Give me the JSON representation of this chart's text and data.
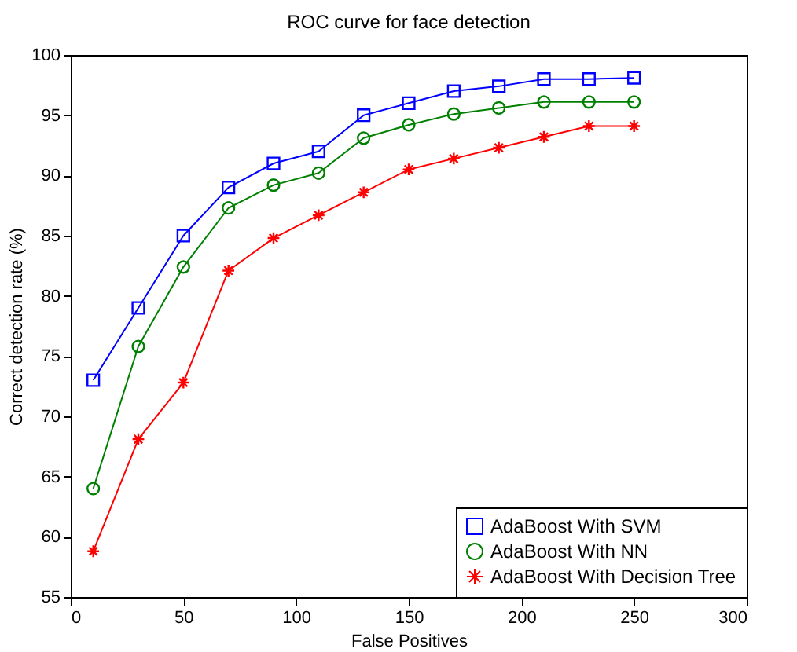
{
  "chart_data": {
    "type": "line",
    "title": "ROC curve for face detection",
    "xlabel": "False Positives",
    "ylabel": "Correct detection rate (%)",
    "x": [
      10,
      30,
      50,
      70,
      90,
      110,
      130,
      150,
      170,
      190,
      210,
      230,
      250
    ],
    "series": [
      {
        "name": "AdaBoost With SVM",
        "color": "#0000ff",
        "marker": "square",
        "values": [
          73,
          79,
          85,
          89,
          91,
          92,
          95,
          96,
          97,
          97.4,
          98,
          98,
          98.1
        ]
      },
      {
        "name": "AdaBoost With NN",
        "color": "#008000",
        "marker": "circle",
        "values": [
          64,
          75.8,
          82.4,
          87.3,
          89.2,
          90.2,
          93.1,
          94.2,
          95.1,
          95.6,
          96.1,
          96.1,
          96.1
        ]
      },
      {
        "name": "AdaBoost With Decision Tree",
        "color": "#ff0000",
        "marker": "cross",
        "values": [
          58.8,
          68.1,
          72.8,
          82.1,
          84.8,
          86.7,
          88.6,
          90.5,
          91.4,
          92.3,
          93.2,
          94.1,
          94.1
        ]
      }
    ],
    "xlim": [
      0,
      300
    ],
    "xticks": [
      0,
      50,
      100,
      150,
      200,
      250,
      300
    ],
    "ylim": [
      55,
      100
    ],
    "yticks": [
      55,
      60,
      65,
      70,
      75,
      80,
      85,
      90,
      95,
      100
    ],
    "grid": false,
    "legend": "bottom right",
    "line_style": "solid"
  }
}
